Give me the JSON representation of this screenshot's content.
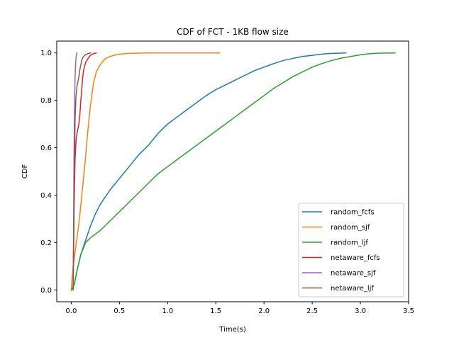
{
  "chart_data": {
    "type": "line",
    "title": "CDF of FCT - 1KB flow size",
    "xlabel": "Time(s)",
    "ylabel": "CDF",
    "xlim": [
      -0.15,
      3.5
    ],
    "ylim": [
      -0.05,
      1.05
    ],
    "xticks": [
      0.0,
      0.5,
      1.0,
      1.5,
      2.0,
      2.5,
      3.0,
      3.5
    ],
    "xtick_labels": [
      "0.0",
      "0.5",
      "1.0",
      "1.5",
      "2.0",
      "2.5",
      "3.0",
      "3.5"
    ],
    "yticks": [
      0.0,
      0.2,
      0.4,
      0.6,
      0.8,
      1.0
    ],
    "ytick_labels": [
      "0.0",
      "0.2",
      "0.4",
      "0.6",
      "0.8",
      "1.0"
    ],
    "grid": false,
    "legend_position": "lower-right",
    "series": [
      {
        "name": "random_fcfs",
        "color": "#1f77b4",
        "x": [
          0.0,
          0.03,
          0.06,
          0.1,
          0.15,
          0.2,
          0.25,
          0.3,
          0.4,
          0.5,
          0.6,
          0.7,
          0.8,
          0.9,
          1.0,
          1.1,
          1.2,
          1.3,
          1.4,
          1.5,
          1.6,
          1.7,
          1.8,
          1.9,
          2.0,
          2.1,
          2.2,
          2.3,
          2.4,
          2.5,
          2.6,
          2.7,
          2.85
        ],
        "y": [
          0.0,
          0.02,
          0.08,
          0.15,
          0.21,
          0.27,
          0.32,
          0.36,
          0.42,
          0.47,
          0.52,
          0.57,
          0.61,
          0.66,
          0.7,
          0.73,
          0.76,
          0.79,
          0.82,
          0.845,
          0.865,
          0.885,
          0.905,
          0.925,
          0.94,
          0.955,
          0.968,
          0.977,
          0.985,
          0.99,
          0.995,
          0.998,
          1.0
        ]
      },
      {
        "name": "random_sjf",
        "color": "#ff7f0e",
        "x": [
          0.0,
          0.02,
          0.05,
          0.08,
          0.11,
          0.14,
          0.17,
          0.2,
          0.23,
          0.26,
          0.3,
          0.35,
          0.4,
          0.45,
          0.5,
          0.6,
          0.8,
          1.0,
          1.2,
          1.54
        ],
        "y": [
          0.0,
          0.1,
          0.19,
          0.28,
          0.4,
          0.52,
          0.66,
          0.78,
          0.87,
          0.92,
          0.95,
          0.975,
          0.985,
          0.99,
          0.995,
          0.998,
          1.0,
          1.0,
          1.0,
          1.0
        ]
      },
      {
        "name": "random_ljf",
        "color": "#2ca02c",
        "x": [
          0.0,
          0.03,
          0.06,
          0.1,
          0.15,
          0.2,
          0.3,
          0.4,
          0.5,
          0.6,
          0.7,
          0.8,
          0.9,
          1.0,
          1.1,
          1.2,
          1.3,
          1.4,
          1.5,
          1.6,
          1.7,
          1.8,
          1.9,
          2.0,
          2.1,
          2.2,
          2.3,
          2.4,
          2.5,
          2.6,
          2.7,
          2.8,
          2.9,
          3.0,
          3.1,
          3.2,
          3.36
        ],
        "y": [
          0.0,
          0.02,
          0.08,
          0.15,
          0.2,
          0.22,
          0.25,
          0.29,
          0.33,
          0.37,
          0.41,
          0.45,
          0.49,
          0.52,
          0.55,
          0.58,
          0.61,
          0.64,
          0.67,
          0.7,
          0.73,
          0.76,
          0.79,
          0.82,
          0.85,
          0.875,
          0.9,
          0.92,
          0.94,
          0.955,
          0.968,
          0.978,
          0.985,
          0.992,
          0.997,
          0.999,
          1.0
        ]
      },
      {
        "name": "netaware_fcfs",
        "color": "#d62728",
        "x": [
          0.02,
          0.03,
          0.04,
          0.05,
          0.06,
          0.07,
          0.08,
          0.09,
          0.1,
          0.11,
          0.12,
          0.13,
          0.15,
          0.18,
          0.2,
          0.22,
          0.26
        ],
        "y": [
          0.0,
          0.35,
          0.55,
          0.63,
          0.66,
          0.68,
          0.7,
          0.74,
          0.8,
          0.85,
          0.9,
          0.93,
          0.96,
          0.98,
          0.99,
          0.995,
          1.0
        ]
      },
      {
        "name": "netaware_sjf",
        "color": "#9467bd",
        "x": [
          0.02,
          0.025,
          0.03,
          0.035,
          0.04,
          0.045,
          0.05,
          0.055,
          0.06
        ],
        "y": [
          0.0,
          0.3,
          0.6,
          0.8,
          0.9,
          0.95,
          0.98,
          0.995,
          1.0
        ]
      },
      {
        "name": "netaware_ljf",
        "color": "#8c564b",
        "x": [
          0.02,
          0.03,
          0.04,
          0.05,
          0.06,
          0.07,
          0.08,
          0.09,
          0.1,
          0.11,
          0.12,
          0.14,
          0.16,
          0.18,
          0.2
        ],
        "y": [
          0.0,
          0.4,
          0.72,
          0.82,
          0.86,
          0.88,
          0.9,
          0.93,
          0.95,
          0.97,
          0.98,
          0.99,
          0.995,
          0.998,
          1.0
        ]
      }
    ]
  }
}
